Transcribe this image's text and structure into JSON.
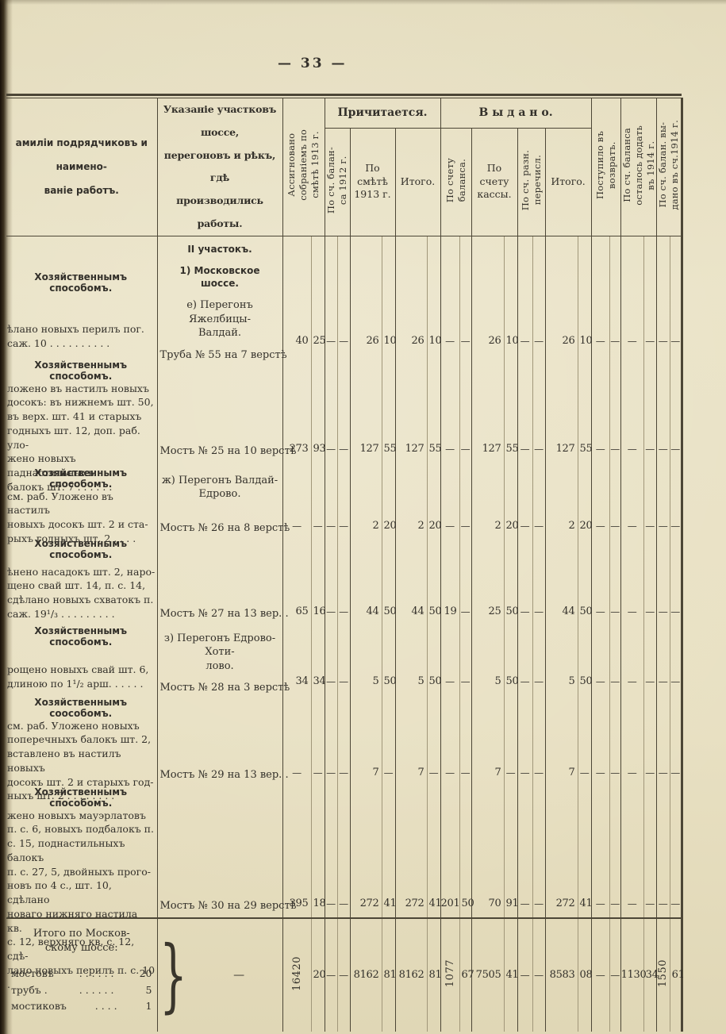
{
  "page": {
    "number": "— 33 —"
  },
  "table": {
    "header": {
      "works": "амиліи подрядчиковъ и наимено-\nваніе работъ.",
      "location": "Указаніе участковъ шоссе,\nперегоновъ и рѣкъ, гдѣ\nпроизводились работы.",
      "assigned": "Ассигновано\nсобраніемъ по\nсмѣтѣ 1913 г.",
      "due_group": "Причитается.",
      "balance_1912": "По сч. балан-\nса 1912 г.",
      "estimate_1913": "По\nсмѣтѣ\n1913 г.",
      "due_total": "Итого.",
      "issued_group": "В ы д а н о.",
      "by_balance": "По счету\nбаланса.",
      "by_cash": "По\nсчету\nкассы.",
      "by_misc": "По сч. разн.\nперечисл.",
      "issued_total": "Итого.",
      "returned": "Поступило въ\nвозвратъ.",
      "remain_1914": "По сч. баланса\nосталось додать\nвъ 1914 г.",
      "issued_1914": "По сч. балан. вы-\nдано въ сч.1914 г."
    },
    "rows": [
      {
        "method": "Хозяйственнымъ способомъ.",
        "works": "ѣлано новыхъ перилъ пог.\nсаж. 10 . . . . . . . . . .",
        "loc_headings": [
          {
            "text": "II участокъ.",
            "bold": true
          },
          {
            "text": "1) Московское шоссе.",
            "bold": true
          },
          {
            "text": "е) Перегонъ Яжелбицы-\nВалдай.",
            "bold": false
          }
        ],
        "object": "Труба № 55 на 7 верстѣ",
        "values": [
          "40",
          "25",
          "—",
          "—",
          "26",
          "10",
          "26",
          "10",
          "—",
          "—",
          "26",
          "10",
          "—",
          "—",
          "26",
          "10",
          "—",
          "—",
          "—",
          "—",
          "—",
          "—"
        ]
      },
      {
        "method": "Хозяйственнымъ способомъ.",
        "works": "ложено въ настилъ новыхъ\nдосокъ: въ нижнемъ шт. 50,\nвъ верх. шт. 41 и старыхъ\nгодныхъ шт. 12, доп. раб. уло-\nжено новыхъ паднастильныхъ\nбалокъ шт. 7  . . . .    . .",
        "loc_headings": [],
        "object": "Мостъ № 25 на 10 верстѣ",
        "values": [
          "273",
          "93",
          "—",
          "—",
          "127",
          "55",
          "127",
          "55",
          "—",
          "—",
          "127",
          "55",
          "—",
          "—",
          "127",
          "55",
          "—",
          "—",
          "—",
          "—",
          "—",
          "—"
        ]
      },
      {
        "method": "Хозяйственнымъ способомъ.",
        "works": "см. раб. Уложено въ настилъ\nновыхъ досокъ  шт. 2 и ста-\nрыхъ годныхъ шт. 2  .  .  .  .",
        "loc_headings": [
          {
            "text": "ж) Перегонъ Валдай-\nЕдрово.",
            "bold": false
          }
        ],
        "object": "Мостъ № 26 на 8 верстѣ",
        "values": [
          "—",
          "—",
          "—",
          "—",
          "2",
          "20",
          "2",
          "20",
          "—",
          "—",
          "2",
          "20",
          "—",
          "—",
          "2",
          "20",
          "—",
          "—",
          "—",
          "—",
          "—",
          "—"
        ]
      },
      {
        "method": "Хозяйственнымъ способомъ.",
        "works": "ѣнено насадокъ шт. 2, наро-\nщено свай шт. 14, п. с. 14,\nсдѣлано новыхъ схватокъ п.\nсаж. 19¹/₃ . . . . . . . . .",
        "loc_headings": [],
        "object": "Мостъ № 27 на 13 вер. .",
        "values": [
          "65",
          "16",
          "—",
          "—",
          "44",
          "50",
          "44",
          "50",
          "19",
          "—",
          "25",
          "50",
          "—",
          "—",
          "44",
          "50",
          "—",
          "—",
          "—",
          "—",
          "—",
          "—"
        ]
      },
      {
        "method": "Хозяйственнымъ способомъ.",
        "works": "рощено новыхъ свай шт. 6,\nдлиною по 1¹/₂ арш.  . . . . .",
        "loc_headings": [
          {
            "text": "з) Перегонъ Едрово-Хоти-\nлово.",
            "bold": false
          }
        ],
        "object": "Мостъ № 28 на 3 верстѣ",
        "values": [
          "34",
          "34",
          "—",
          "—",
          "5",
          "50",
          "5",
          "50",
          "—",
          "—",
          "5",
          "50",
          "—",
          "—",
          "5",
          "50",
          "—",
          "—",
          "—",
          "—",
          "—",
          "—"
        ]
      },
      {
        "method": "Хозяйственнымъ соособомъ.",
        "works": "см. раб.  Уложено  новыхъ\nпоперечныхъ  балокъ  шт. 2,\nвставлено въ настилъ новыхъ\nдосокъ шт. 2 и старыхъ год-\nныхъ шт. 2  . . . . . . . .",
        "loc_headings": [],
        "object": "Мостъ № 29 на 13 вер. .",
        "values": [
          "—",
          "—",
          "—",
          "—",
          "7",
          "—",
          "7",
          "—",
          "—",
          "—",
          "7",
          "—",
          "—",
          "—",
          "7",
          "—",
          "—",
          "—",
          "—",
          "—",
          "—",
          "—"
        ]
      },
      {
        "method": "Хозяйственнымъ способомъ.",
        "works": "жено новыхъ  мауэрлатовъ\nп. с. 6, новыхъ подбалокъ п.\nс. 15, поднастильныхъ балокъ\nп. с. 27, 5, двойныхъ прого-\nновъ по 4 с., шт. 10, сдѣлано\nноваго нижняго настила кв.\nс. 12, верхняго кв. с. 12, сдѣ-\nлано новыхъ перилъ п. с. 10 .",
        "loc_headings": [],
        "object": "Мостъ № 30 на 29 верстѣ",
        "values": [
          "395",
          "18",
          "—",
          "—",
          "272",
          "41",
          "272",
          "41",
          "201",
          "50",
          "70",
          "91",
          "—",
          "—",
          "272",
          "41",
          "—",
          "—",
          "—",
          "—",
          "—",
          "—"
        ]
      }
    ],
    "totals": {
      "title": "Итого по Москов-\nскому шоссе:",
      "items": [
        {
          "label": "мостовъ",
          "dots": ".  .  .  .  .  .",
          "num": "20"
        },
        {
          "label": "трубъ .",
          "dots": ".  .  .  .  .  .",
          "num": "5"
        },
        {
          "label": "мостиковъ",
          "dots": ".  .  .  .",
          "num": "1"
        }
      ],
      "brace": "}",
      "dash": "—",
      "values": [
        "16420",
        "20",
        "—",
        "—",
        "8162",
        "81",
        "8162",
        "81",
        "1077",
        "67",
        "7505",
        "41",
        "—",
        "—",
        "8583",
        "08",
        "—",
        "—",
        "1130",
        "34",
        "1550",
        "61"
      ]
    }
  }
}
